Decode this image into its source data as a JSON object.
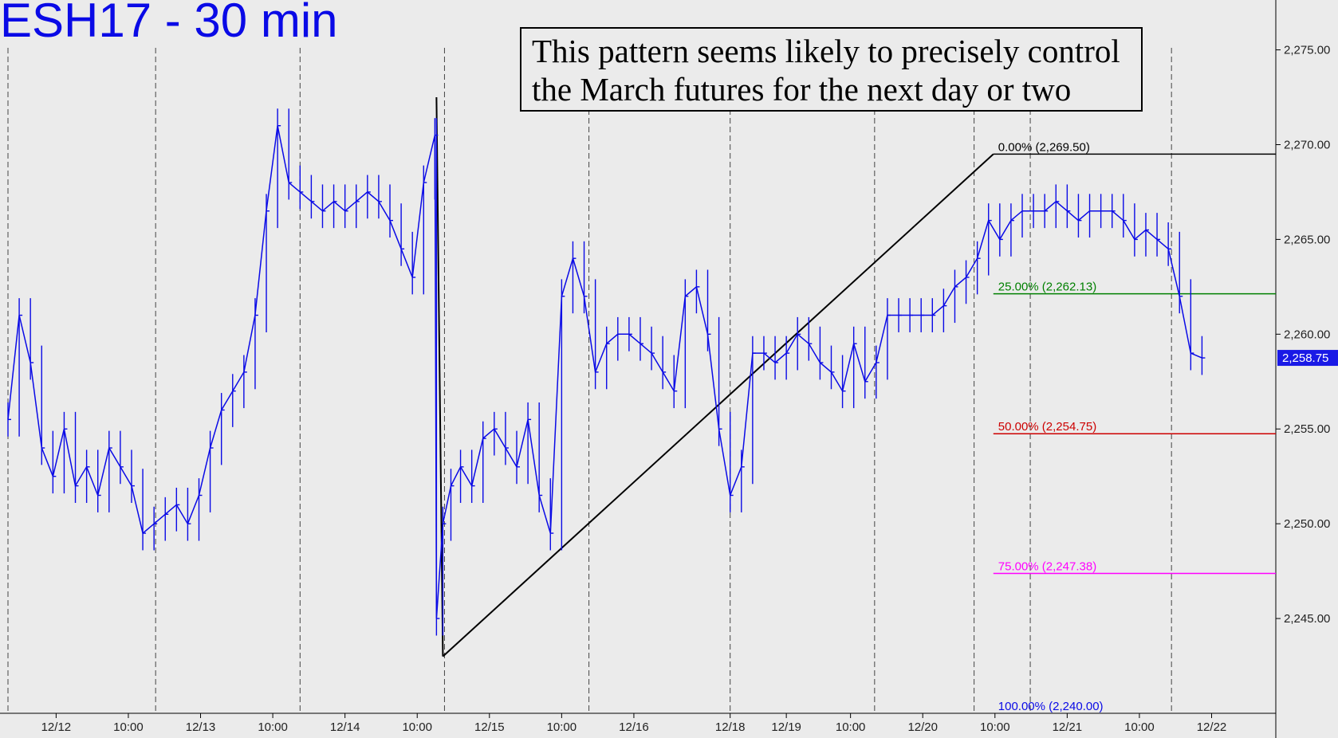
{
  "title": "ESH17 - 30 min",
  "annotation": {
    "line1": "This pattern seems likely to precisely control",
    "line2": "the March futures for the next day or two"
  },
  "colors": {
    "background": "#ebebeb",
    "price_bars": "#0a0ae6",
    "title": "#0a0ae6",
    "fib_0": "#000000",
    "fib_25": "#008000",
    "fib_50": "#cc0000",
    "fib_75": "#ff00ff",
    "fib_100": "#0a0ae6",
    "last_price_badge": "#1a1ae6"
  },
  "chart_data": {
    "type": "line",
    "instrument": "ESH17",
    "timeframe": "30 min",
    "y_axis": {
      "ticks": [
        "2,245.00",
        "2,250.00",
        "2,255.00",
        "2,260.00",
        "2,265.00",
        "2,270.00",
        "2,275.00"
      ],
      "tick_values": [
        2245,
        2250,
        2255,
        2260,
        2265,
        2270,
        2275
      ],
      "range": [
        2240,
        2277
      ]
    },
    "x_axis": {
      "tick_labels": [
        "12/12",
        "10:00",
        "12/13",
        "10:00",
        "12/14",
        "10:00",
        "12/15",
        "10:00",
        "12/16",
        "12/18",
        "12/19",
        "10:00",
        "12/20",
        "10:00",
        "12/21",
        "10:00",
        "12/22"
      ],
      "tick_positions": [
        3,
        7.5,
        12,
        16.5,
        21,
        25.5,
        30,
        34.5,
        39,
        45,
        48.5,
        52.5,
        57,
        61.5,
        66,
        70.5,
        75
      ],
      "range": [
        0,
        79
      ]
    },
    "session_separators": [
      0,
      9.2,
      18.2,
      27.2,
      36.2,
      45,
      54,
      60.2,
      63.7,
      72.5
    ],
    "series": [
      {
        "values": [
          [
            0,
            2255.5
          ],
          [
            0.7,
            2261
          ],
          [
            1.4,
            2258.5
          ],
          [
            2.1,
            2254
          ],
          [
            2.8,
            2252.5
          ],
          [
            3.5,
            2255
          ],
          [
            4.2,
            2252
          ],
          [
            4.9,
            2253
          ],
          [
            5.6,
            2251.5
          ],
          [
            6.3,
            2254
          ],
          [
            7.0,
            2253
          ],
          [
            7.7,
            2252
          ],
          [
            8.4,
            2249.5
          ],
          [
            9.1,
            2250
          ],
          [
            9.8,
            2250.5
          ],
          [
            10.5,
            2251
          ],
          [
            11.2,
            2250
          ],
          [
            11.9,
            2251.5
          ],
          [
            12.6,
            2254
          ],
          [
            13.3,
            2256
          ],
          [
            14.0,
            2257
          ],
          [
            14.7,
            2258
          ],
          [
            15.4,
            2261
          ],
          [
            16.1,
            2266.5
          ],
          [
            16.8,
            2271
          ],
          [
            17.5,
            2268
          ],
          [
            18.2,
            2267.5
          ],
          [
            18.9,
            2267
          ],
          [
            19.6,
            2266.5
          ],
          [
            20.3,
            2267
          ],
          [
            21.0,
            2266.5
          ],
          [
            21.7,
            2267
          ],
          [
            22.4,
            2267.5
          ],
          [
            23.1,
            2267
          ],
          [
            23.8,
            2266
          ],
          [
            24.5,
            2264.5
          ],
          [
            25.2,
            2263
          ],
          [
            25.9,
            2268
          ],
          [
            26.6,
            2270.5
          ],
          [
            26.7,
            2245
          ],
          [
            27.1,
            2250
          ],
          [
            27.6,
            2252
          ],
          [
            28.2,
            2253
          ],
          [
            28.9,
            2252
          ],
          [
            29.6,
            2254.5
          ],
          [
            30.3,
            2255
          ],
          [
            31.0,
            2254
          ],
          [
            31.7,
            2253
          ],
          [
            32.4,
            2255.5
          ],
          [
            33.1,
            2251.5
          ],
          [
            33.8,
            2249.5
          ],
          [
            34.5,
            2262
          ],
          [
            35.2,
            2264
          ],
          [
            35.9,
            2262
          ],
          [
            36.6,
            2258
          ],
          [
            37.3,
            2259.5
          ],
          [
            38.0,
            2260
          ],
          [
            38.7,
            2260
          ],
          [
            39.4,
            2259.5
          ],
          [
            40.1,
            2259
          ],
          [
            40.8,
            2258
          ],
          [
            41.5,
            2257
          ],
          [
            42.2,
            2262
          ],
          [
            42.9,
            2262.5
          ],
          [
            43.6,
            2260
          ],
          [
            44.3,
            2255
          ],
          [
            45.0,
            2251.5
          ],
          [
            45.7,
            2253
          ],
          [
            46.4,
            2259
          ],
          [
            47.1,
            2259
          ],
          [
            47.8,
            2258.5
          ],
          [
            48.5,
            2259
          ],
          [
            49.2,
            2260
          ],
          [
            49.9,
            2259.5
          ],
          [
            50.6,
            2258.5
          ],
          [
            51.3,
            2258
          ],
          [
            52.0,
            2257
          ],
          [
            52.7,
            2259.5
          ],
          [
            53.4,
            2257.5
          ],
          [
            54.1,
            2258.5
          ],
          [
            54.8,
            2261
          ],
          [
            55.5,
            2261
          ],
          [
            56.2,
            2261
          ],
          [
            56.9,
            2261
          ],
          [
            57.6,
            2261
          ],
          [
            58.3,
            2261.5
          ],
          [
            59.0,
            2262.5
          ],
          [
            59.7,
            2263
          ],
          [
            60.4,
            2264
          ],
          [
            61.1,
            2266
          ],
          [
            61.8,
            2265
          ],
          [
            62.5,
            2266
          ],
          [
            63.2,
            2266.5
          ],
          [
            63.9,
            2266.5
          ],
          [
            64.6,
            2266.5
          ],
          [
            65.3,
            2267
          ],
          [
            66.0,
            2266.5
          ],
          [
            66.7,
            2266
          ],
          [
            67.4,
            2266.5
          ],
          [
            68.1,
            2266.5
          ],
          [
            68.8,
            2266.5
          ],
          [
            69.5,
            2266
          ],
          [
            70.2,
            2265
          ],
          [
            70.9,
            2265.5
          ],
          [
            71.6,
            2265
          ],
          [
            72.3,
            2264.5
          ],
          [
            73.0,
            2262
          ],
          [
            73.7,
            2259
          ],
          [
            74.4,
            2258.75
          ]
        ]
      }
    ],
    "last_price": "2,258.75",
    "retracement": {
      "levels": [
        {
          "label": "0.00% (2,269.50)",
          "value": 2269.5,
          "color": "#000000"
        },
        {
          "label": "25.00% (2,262.13)",
          "value": 2262.13,
          "color": "#008000"
        },
        {
          "label": "50.00% (2,254.75)",
          "value": 2254.75,
          "color": "#cc0000"
        },
        {
          "label": "75.00% (2,247.38)",
          "value": 2247.38,
          "color": "#ff00ff"
        },
        {
          "label": "100.00% (2,240.00)",
          "value": 2240.0,
          "color": "#0a0ae6"
        }
      ],
      "start_x": 61.4
    },
    "trendlines": [
      {
        "from": [
          26.7,
          2272.5
        ],
        "to": [
          27.1,
          2243
        ]
      },
      {
        "from": [
          27.1,
          2243
        ],
        "to": [
          61.4,
          2269.5
        ]
      }
    ],
    "grid": false,
    "legend": "none"
  }
}
